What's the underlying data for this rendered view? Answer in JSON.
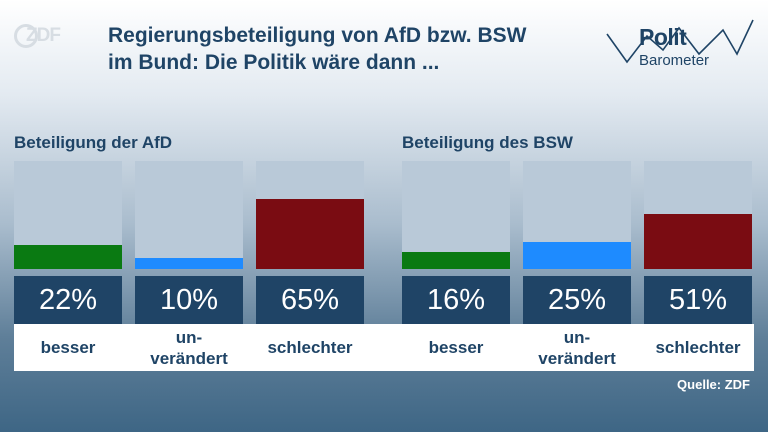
{
  "header": {
    "logo_text": "ZDF",
    "title_line1": "Regierungsbeteiligung von AfD bzw. BSW",
    "title_line2": "im Bund: Die Politik wäre dann ...",
    "brand_line1": "Polit",
    "brand_line2": "Barometer"
  },
  "footer": {
    "source": "Quelle: ZDF"
  },
  "colors": {
    "besser": "#0a7a12",
    "unveraendert": "#1e8bff",
    "schlechter": "#7a0c12",
    "bar_background": "#b9c9d8",
    "value_box": "#1f4466"
  },
  "chart_data": [
    {
      "type": "bar",
      "title": "Beteiligung der AfD",
      "categories": [
        "besser",
        "un-\nverändert",
        "schlechter"
      ],
      "values": [
        22,
        10,
        65
      ],
      "value_labels": [
        "22%",
        "10%",
        "65%"
      ],
      "ylim": [
        0,
        100
      ]
    },
    {
      "type": "bar",
      "title": "Beteiligung des BSW",
      "categories": [
        "besser",
        "un-\nverändert",
        "schlechter"
      ],
      "values": [
        16,
        25,
        51
      ],
      "value_labels": [
        "16%",
        "25%",
        "51%"
      ],
      "ylim": [
        0,
        100
      ]
    }
  ]
}
